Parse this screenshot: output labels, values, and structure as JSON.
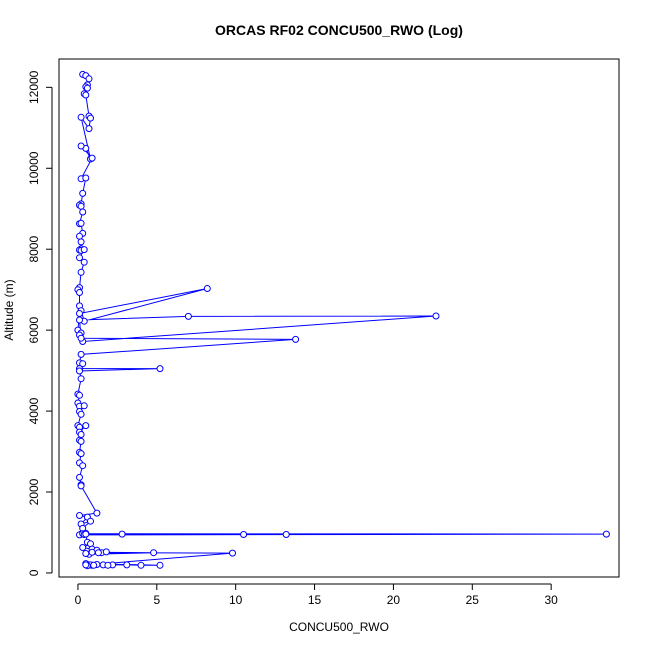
{
  "chart_data": {
    "type": "line",
    "title": "ORCAS RF02 CONCU500_RWO (Log)",
    "xlabel": "CONCU500_RWO",
    "ylabel": "Altitude (m)",
    "xlim": [
      -1.2,
      34.3
    ],
    "ylim": [
      -100,
      12700
    ],
    "xticks": [
      0,
      5,
      10,
      15,
      20,
      25,
      30
    ],
    "yticks": [
      0,
      2000,
      4000,
      6000,
      8000,
      10000,
      12000
    ],
    "grid": false,
    "line_color": "#0000ff",
    "marker": "open-circle",
    "series": [
      {
        "x": [
          0.3,
          0.5,
          0.7,
          0.6,
          0.5,
          0.6,
          0.4,
          0.5,
          0.7,
          0.8,
          0.7,
          0.2,
          0.8,
          0.5,
          0.2,
          0.9,
          0.2,
          0.5,
          0.3,
          0.2,
          0.1,
          0.2,
          0.3,
          0.1,
          0.2,
          0.3,
          0.1,
          0.2,
          0.2,
          0.1,
          0.2,
          0.4,
          0.1,
          0.4,
          0.2,
          0.1,
          0.0,
          0.1,
          0.1,
          0.2,
          0.4,
          8.2,
          0.1,
          0.0,
          0.2,
          0.1,
          0.3,
          22.7,
          7.0,
          0.1,
          0.2,
          13.8,
          0.2,
          0.1,
          0.3,
          0.1,
          5.2,
          0.1,
          0.2,
          0.0,
          0.1,
          0.0,
          0.1,
          0.4,
          0.1,
          0.2,
          0.0,
          0.1,
          0.5,
          0.1,
          0.2,
          0.1,
          0.2,
          0.1,
          0.2,
          0.1,
          0.3,
          0.1,
          0.2,
          0.2,
          1.2,
          0.1,
          0.6,
          0.2,
          0.8,
          0.3,
          0.5,
          0.2,
          2.8,
          0.1,
          33.5,
          0.3,
          10.5,
          0.4,
          13.2,
          0.5,
          0.6,
          0.8,
          0.3,
          0.9,
          1.2,
          1.5,
          0.7,
          4.8,
          0.9,
          0.5,
          1.8,
          1.3,
          9.8,
          0.7,
          1.6,
          0.5,
          5.2,
          4.0,
          3.1,
          2.2,
          1.9,
          1.2,
          0.9,
          0.8,
          0.6,
          0.5,
          1.0
        ],
        "y": [
          12320,
          12290,
          12210,
          12060,
          12010,
          11980,
          11840,
          11810,
          11290,
          11240,
          10980,
          11260,
          10230,
          10490,
          10550,
          10250,
          9740,
          9760,
          9380,
          9120,
          9090,
          9060,
          8920,
          8630,
          8640,
          8390,
          8320,
          8180,
          8010,
          7980,
          7970,
          7990,
          7790,
          7680,
          7430,
          7050,
          7000,
          6930,
          6600,
          6480,
          6220,
          7030,
          6410,
          6000,
          5930,
          5880,
          5720,
          6350,
          6340,
          6250,
          5800,
          5770,
          5400,
          5190,
          5170,
          5050,
          5050,
          4990,
          4800,
          4420,
          4390,
          4200,
          4120,
          4130,
          3990,
          3920,
          3640,
          3600,
          3640,
          3480,
          3420,
          3280,
          3250,
          2980,
          2950,
          2720,
          2650,
          2360,
          2180,
          2150,
          1480,
          1420,
          1380,
          1210,
          1280,
          1100,
          980,
          960,
          960,
          940,
          960,
          970,
          950,
          950,
          950,
          960,
          760,
          720,
          630,
          590,
          560,
          500,
          460,
          500,
          510,
          480,
          520,
          500,
          490,
          200,
          200,
          230,
          190,
          190,
          200,
          200,
          190,
          210,
          190,
          200,
          180,
          200,
          190
        ]
      }
    ]
  }
}
